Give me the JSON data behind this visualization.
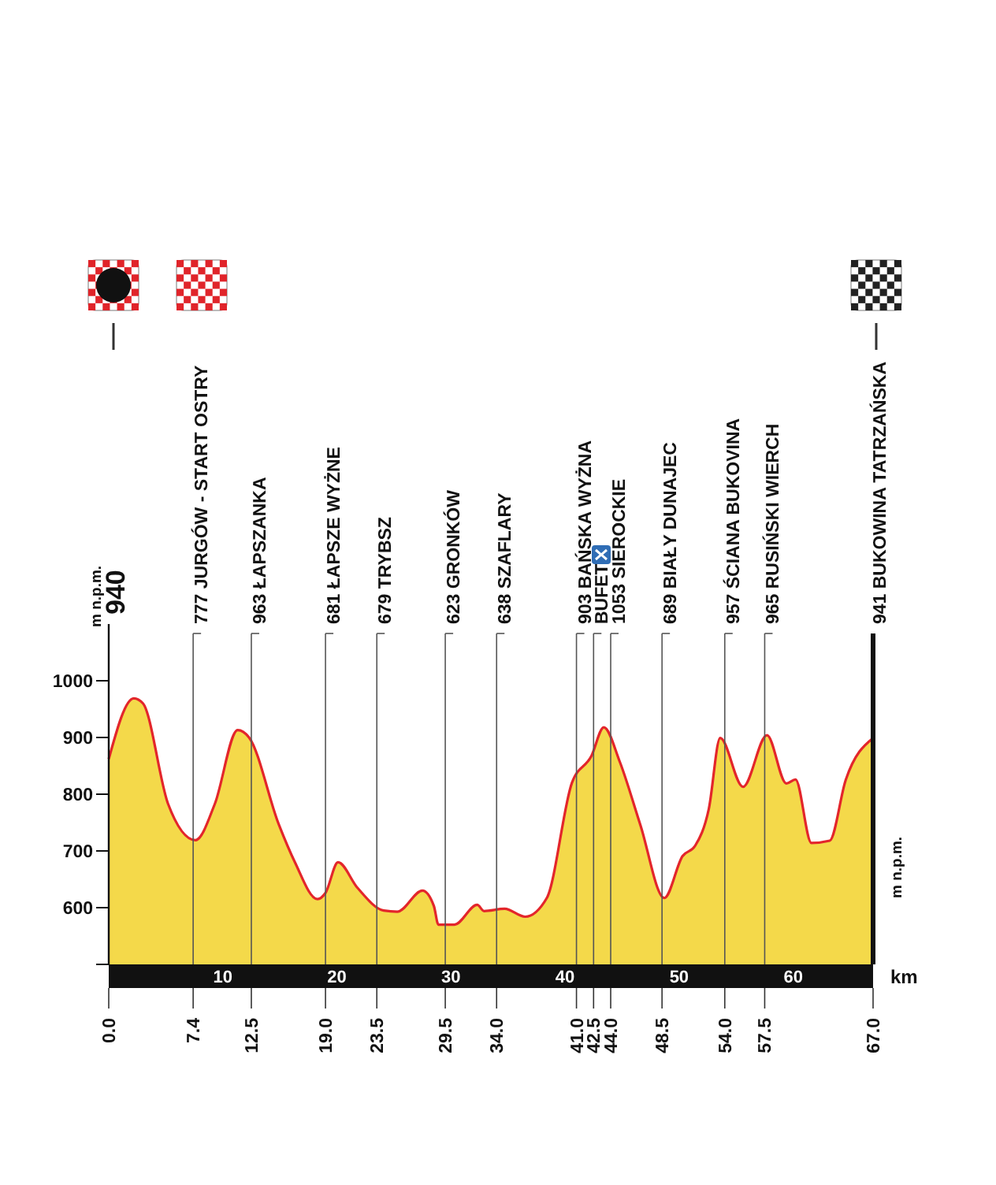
{
  "chart_data": {
    "type": "area",
    "ylabel": "m n.p.m.",
    "xlabel": "km",
    "series": [
      {
        "color": "#f4d94a",
        "x": [
          0,
          2.2,
          3.0,
          5.2,
          7.6,
          9.3,
          11.3,
          12.3,
          14.9,
          16.3,
          18.3,
          19.0,
          20.1,
          21.8,
          24.1,
          25.3,
          27.5,
          28.5,
          28.9,
          30.3,
          32.3,
          32.9,
          34.7,
          36.5,
          38.4,
          40.6,
          42.3,
          43.4,
          44.8,
          46.6,
          48.7,
          50.3,
          51.4,
          52.6,
          53.6,
          55.6,
          57.7,
          59.4,
          60.2,
          61.6,
          63.2,
          64.6,
          67.0
        ],
        "values": [
          862,
          969,
          960,
          783,
          719,
          783,
          913,
          900,
          747,
          681,
          615,
          626,
          680,
          635,
          595,
          593,
          630,
          603,
          570,
          570,
          605,
          594,
          598,
          584,
          617,
          820,
          867,
          918,
          857,
          746,
          617,
          691,
          709,
          774,
          899,
          813,
          904,
          819,
          826,
          714,
          718,
          825,
          899
        ]
      }
    ],
    "xlim": [
      0,
      67
    ],
    "xticks": [
      {
        "value": 0,
        "label": "0.0"
      },
      7.4,
      12.5,
      {
        "value": 19,
        "label": "19.0"
      },
      23.5,
      29.5,
      {
        "value": 34,
        "label": "34.0"
      },
      {
        "value": 41,
        "label": "41.0"
      },
      42.5,
      {
        "value": 44,
        "label": "44.0"
      },
      48.5,
      {
        "value": 54,
        "label": "54.0"
      },
      57.5,
      {
        "value": 67,
        "label": "67.0"
      }
    ],
    "x2lim": [
      0,
      67
    ],
    "x2ticks": [
      10,
      20,
      30,
      40,
      50,
      60
    ],
    "ylim": [
      500,
      1100
    ],
    "yticks": [
      {
        "value": 500,
        "label": null
      },
      600,
      700,
      800,
      900,
      1000
    ],
    "annotations": [
      "940"
    ],
    "ref_lines": [
      {
        "axis": "x",
        "value": 7.4,
        "label": "777 JURGÓW - START OSTRY"
      },
      {
        "axis": "x",
        "value": 12.5,
        "label": "963 ŁAPSZANKA"
      },
      {
        "axis": "x",
        "value": 19,
        "label": "681 ŁAPSZE WYŻNE"
      },
      {
        "axis": "x",
        "value": 23.5,
        "label": "679 TRYBSZ"
      },
      {
        "axis": "x",
        "value": 29.5,
        "label": "623 GRONKÓW"
      },
      {
        "axis": "x",
        "value": 34,
        "label": "638 SZAFLARY"
      },
      {
        "axis": "x",
        "value": 41,
        "label": "903 BAŃSKA WYŻNA"
      },
      {
        "axis": "x",
        "value": 42.5,
        "label": "BUFET"
      },
      {
        "axis": "x",
        "value": 44,
        "label": "1053 SIEROCKIE"
      },
      {
        "axis": "x",
        "value": 48.5,
        "label": "689 BIAŁY DUNAJEC"
      },
      {
        "axis": "x",
        "value": 54,
        "label": "957 ŚCIANA BUKOVINA"
      },
      {
        "axis": "x",
        "value": 57.5,
        "label": "965 RUSIŃSKI WIERCH"
      },
      {
        "axis": "x",
        "value": 67,
        "label": "941 BUKOWINA TATRZAŃSKA"
      }
    ],
    "grid": false
  }
}
